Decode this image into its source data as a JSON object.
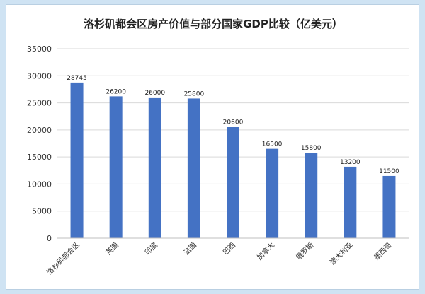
{
  "chart_data": {
    "type": "bar",
    "title": "洛杉矶都会区房产价值与部分国家GDP比较（亿美元）",
    "categories": [
      "洛杉矶都会区",
      "英国",
      "印度",
      "法国",
      "巴西",
      "加拿大",
      "俄罗斯",
      "澳大利亚",
      "墨西哥"
    ],
    "values": [
      28745,
      26200,
      26000,
      25800,
      20600,
      16500,
      15800,
      13200,
      11500
    ],
    "data_labels": [
      "28745",
      "26200",
      "26000",
      "25800",
      "20600",
      "16500",
      "15800",
      "13200",
      "11500"
    ],
    "yticks": [
      "0",
      "5000",
      "10000",
      "15000",
      "20000",
      "25000",
      "30000",
      "35000"
    ],
    "ylim": [
      0,
      35000
    ],
    "xlabel": "",
    "ylabel": "",
    "grid": true,
    "legend": "none",
    "bar_color": "#4472c4"
  }
}
